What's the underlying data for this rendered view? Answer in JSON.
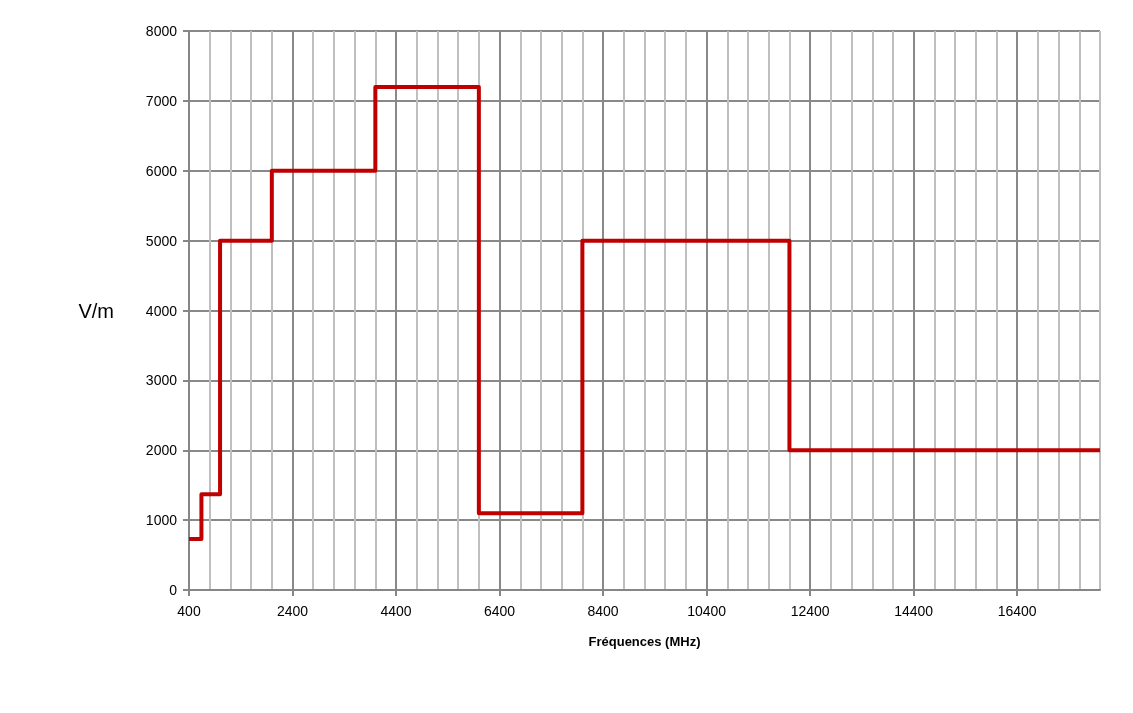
{
  "chart_data": {
    "type": "step",
    "xlabel": "Fréquences (MHz)",
    "ylabel": "V/m",
    "x": [
      400,
      640,
      1000,
      2000,
      4000,
      6000,
      8000,
      12000,
      18000
    ],
    "series": [
      {
        "color": "#c00000",
        "values": [
          730,
          1370,
          5000,
          6000,
          7200,
          1100,
          5000,
          2000,
          2000
        ]
      }
    ],
    "xlim": [
      400,
      18000
    ],
    "xticks": [
      400,
      {
        "value": 800,
        "label": null
      },
      {
        "value": 1200,
        "label": null
      },
      {
        "value": 1600,
        "label": null
      },
      {
        "value": 2000,
        "label": null
      },
      2400,
      {
        "value": 2800,
        "label": null
      },
      {
        "value": 3200,
        "label": null
      },
      {
        "value": 3600,
        "label": null
      },
      {
        "value": 4000,
        "label": null
      },
      4400,
      {
        "value": 4800,
        "label": null
      },
      {
        "value": 5200,
        "label": null
      },
      {
        "value": 5600,
        "label": null
      },
      {
        "value": 6000,
        "label": null
      },
      6400,
      {
        "value": 6800,
        "label": null
      },
      {
        "value": 7200,
        "label": null
      },
      {
        "value": 7600,
        "label": null
      },
      {
        "value": 8000,
        "label": null
      },
      8400,
      {
        "value": 8800,
        "label": null
      },
      {
        "value": 9200,
        "label": null
      },
      {
        "value": 9600,
        "label": null
      },
      {
        "value": 10000,
        "label": null
      },
      10400,
      {
        "value": 10800,
        "label": null
      },
      {
        "value": 11200,
        "label": null
      },
      {
        "value": 11600,
        "label": null
      },
      {
        "value": 12000,
        "label": null
      },
      12400,
      {
        "value": 12800,
        "label": null
      },
      {
        "value": 13200,
        "label": null
      },
      {
        "value": 13600,
        "label": null
      },
      {
        "value": 14000,
        "label": null
      },
      14400,
      {
        "value": 14800,
        "label": null
      },
      {
        "value": 15200,
        "label": null
      },
      {
        "value": 15600,
        "label": null
      },
      {
        "value": 16000,
        "label": null
      },
      16400,
      {
        "value": 16800,
        "label": null
      },
      {
        "value": 17200,
        "label": null
      },
      {
        "value": 17600,
        "label": null
      },
      {
        "value": 18000,
        "label": null
      }
    ],
    "ylim": [
      0,
      8000
    ],
    "yticks": [
      0,
      1000,
      2000,
      3000,
      4000,
      5000,
      6000,
      7000,
      8000
    ],
    "grid": true,
    "marker": "none",
    "line_style": "solid"
  }
}
